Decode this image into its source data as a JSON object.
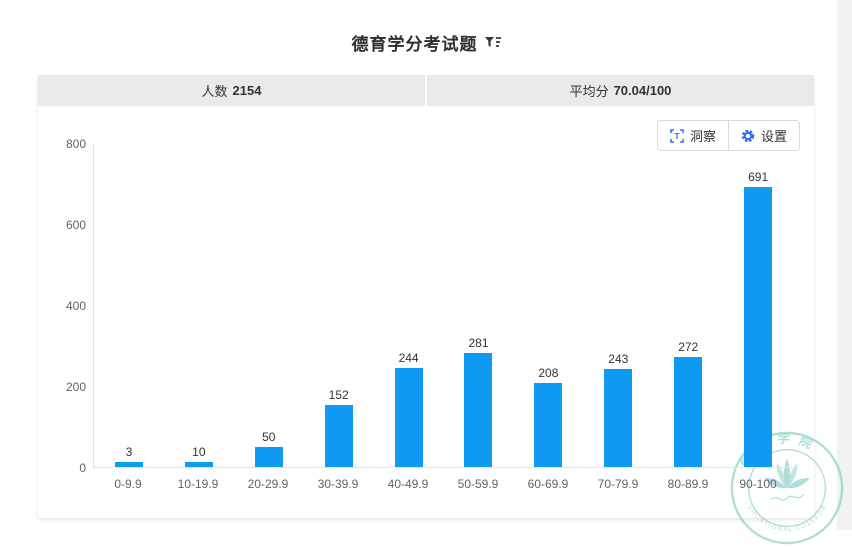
{
  "page": {
    "title": "德育学分考试题"
  },
  "stats": {
    "count_label": "人数",
    "count_value": "2154",
    "avg_label": "平均分",
    "avg_value": "70.04/100"
  },
  "toolbar": {
    "insight_label": "洞察",
    "settings_label": "设置"
  },
  "icons": {
    "title_filter": "filter-funnel-icon",
    "insight": "text-scan-icon",
    "settings": "gear-icon"
  },
  "colors": {
    "bar": "#0e99f2",
    "icon_blue": "#3a6cf0",
    "stat_bg": "#e8eaeb",
    "watermark": "#72c3b7"
  },
  "watermark": {
    "top_text": "职业学院",
    "bottom_text": "VOCATIONAL COLLEGE"
  },
  "chart_data": {
    "type": "bar",
    "title": "德育学分考试题",
    "categories": [
      "0-9.9",
      "10-19.9",
      "20-29.9",
      "30-39.9",
      "40-49.9",
      "50-59.9",
      "60-69.9",
      "70-79.9",
      "80-89.9",
      "90-100"
    ],
    "values": [
      3,
      10,
      50,
      152,
      244,
      281,
      208,
      243,
      272,
      691
    ],
    "xlabel": "",
    "ylabel": "",
    "ylim": [
      0,
      800
    ],
    "yticks": [
      0,
      200,
      400,
      600,
      800
    ],
    "grid": false,
    "legend": "none",
    "value_labels": true,
    "bar_color": "#0e99f2"
  }
}
